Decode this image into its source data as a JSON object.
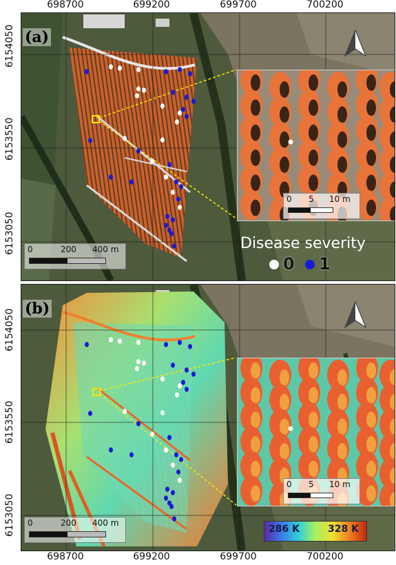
{
  "axes": {
    "x_ticks": [
      "698700",
      "699200",
      "699700",
      "700200"
    ],
    "y_ticks": [
      "6154050",
      "6153550",
      "6153050"
    ]
  },
  "panel_a": {
    "label": "(a)",
    "scale": {
      "ticks": [
        "0",
        "200",
        "400 m"
      ]
    },
    "inset_scale": {
      "ticks": [
        "0",
        "5",
        "10 m"
      ]
    },
    "legend": {
      "title": "Disease severity",
      "classes": [
        {
          "value": "0",
          "color": "#ffffff"
        },
        {
          "value": "1",
          "color": "#1a1ad6"
        }
      ]
    }
  },
  "panel_b": {
    "label": "(b)",
    "scale": {
      "ticks": [
        "0",
        "200",
        "400 m"
      ]
    },
    "inset_scale": {
      "ticks": [
        "0",
        "5",
        "10 m"
      ]
    },
    "colorbar": {
      "min_label": "286 K",
      "max_label": "328 K",
      "colors": [
        "#5a2aa8",
        "#3a7ae8",
        "#30d0d8",
        "#a8f060",
        "#f0e030",
        "#f08020",
        "#c02810"
      ]
    }
  },
  "colors": {
    "accent_yellow": "#ffe600",
    "tree_orange": "#e8743a",
    "sample_white": "#ffffff",
    "sample_blue": "#1a1ad6"
  }
}
